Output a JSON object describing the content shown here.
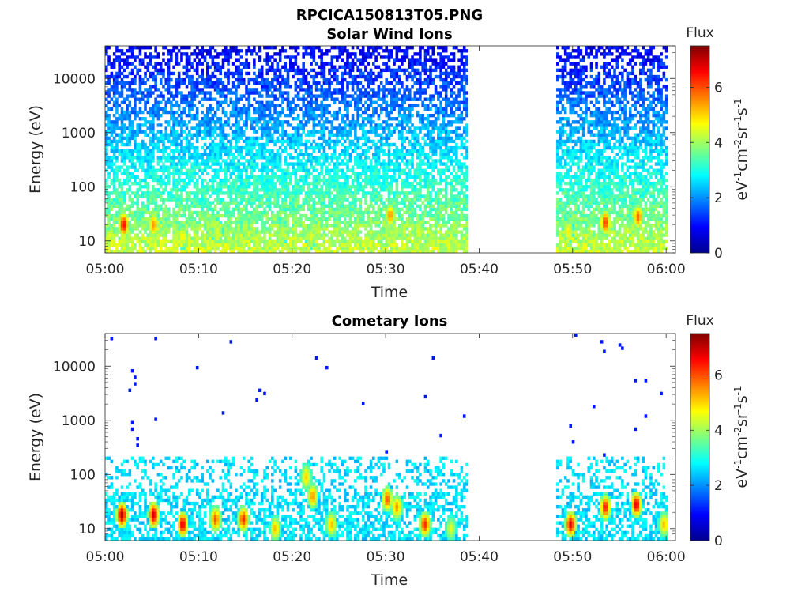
{
  "figure": {
    "title": "RPCICA150813T05.PNG"
  },
  "chart_data": [
    {
      "type": "heatmap",
      "title": "Solar Wind Ions",
      "xlabel": "Time",
      "ylabel": "Energy (eV)",
      "x_ticks": [
        "05:00",
        "05:10",
        "05:20",
        "05:30",
        "05:40",
        "05:50",
        "06:00"
      ],
      "x_range_minutes": [
        0,
        61
      ],
      "y_scale": "log",
      "y_ticks": [
        "10",
        "100",
        "1000",
        "10000"
      ],
      "y_range": [
        6,
        40000
      ],
      "data_gaps_minutes": [
        [
          38.8,
          48.3
        ]
      ],
      "colorbar": {
        "label": "Flux",
        "unit_label": "eV-1cm-2sr-1s-1",
        "ticks": [
          "0",
          "2",
          "4",
          "6"
        ],
        "range": [
          0,
          7.5
        ],
        "colormap": "jet"
      },
      "hotspots": [
        {
          "t": 2,
          "e": 20,
          "v": 6.5
        },
        {
          "t": 5.2,
          "e": 20,
          "v": 5.5
        },
        {
          "t": 8.3,
          "e": 12,
          "v": 4.8
        },
        {
          "t": 12,
          "e": 15,
          "v": 4.5
        },
        {
          "t": 15,
          "e": 18,
          "v": 4.3
        },
        {
          "t": 19,
          "e": 15,
          "v": 4.2
        },
        {
          "t": 22,
          "e": 12,
          "v": 4.5
        },
        {
          "t": 30.5,
          "e": 30,
          "v": 5.5
        },
        {
          "t": 33.5,
          "e": 15,
          "v": 4.5
        },
        {
          "t": 49.5,
          "e": 15,
          "v": 4.8
        },
        {
          "t": 53.5,
          "e": 22,
          "v": 6.2
        },
        {
          "t": 57,
          "e": 28,
          "v": 5.8
        }
      ]
    },
    {
      "type": "heatmap",
      "title": "Cometary Ions",
      "xlabel": "Time",
      "ylabel": "Energy (eV)",
      "x_ticks": [
        "05:00",
        "05:10",
        "05:20",
        "05:30",
        "05:40",
        "05:50",
        "06:00"
      ],
      "x_range_minutes": [
        0,
        61
      ],
      "y_scale": "log",
      "y_ticks": [
        "10",
        "100",
        "1000",
        "10000"
      ],
      "y_range": [
        6,
        40000
      ],
      "data_gaps_minutes": [
        [
          38.8,
          48.3
        ]
      ],
      "colorbar": {
        "label": "Flux",
        "unit_label": "eV-1cm-2sr-1s-1",
        "ticks": [
          "0",
          "2",
          "4",
          "6"
        ],
        "range": [
          0,
          7.5
        ],
        "colormap": "jet"
      },
      "hotspots": [
        {
          "t": 1.8,
          "e": 18,
          "v": 7.2
        },
        {
          "t": 5.2,
          "e": 18,
          "v": 7.0
        },
        {
          "t": 8.3,
          "e": 12,
          "v": 6.8
        },
        {
          "t": 11.8,
          "e": 15,
          "v": 6.0
        },
        {
          "t": 14.8,
          "e": 15,
          "v": 6.3
        },
        {
          "t": 18.2,
          "e": 10,
          "v": 5.2
        },
        {
          "t": 21.5,
          "e": 90,
          "v": 5.0
        },
        {
          "t": 22.2,
          "e": 40,
          "v": 5.5
        },
        {
          "t": 24.2,
          "e": 12,
          "v": 5.2
        },
        {
          "t": 30.2,
          "e": 35,
          "v": 6.0
        },
        {
          "t": 31.2,
          "e": 25,
          "v": 5.5
        },
        {
          "t": 34.2,
          "e": 12,
          "v": 6.3
        },
        {
          "t": 37,
          "e": 10,
          "v": 4.5
        },
        {
          "t": 49.8,
          "e": 12,
          "v": 6.8
        },
        {
          "t": 53.5,
          "e": 25,
          "v": 6.5
        },
        {
          "t": 56.8,
          "e": 28,
          "v": 6.8
        },
        {
          "t": 59.8,
          "e": 12,
          "v": 5.2
        }
      ]
    }
  ]
}
